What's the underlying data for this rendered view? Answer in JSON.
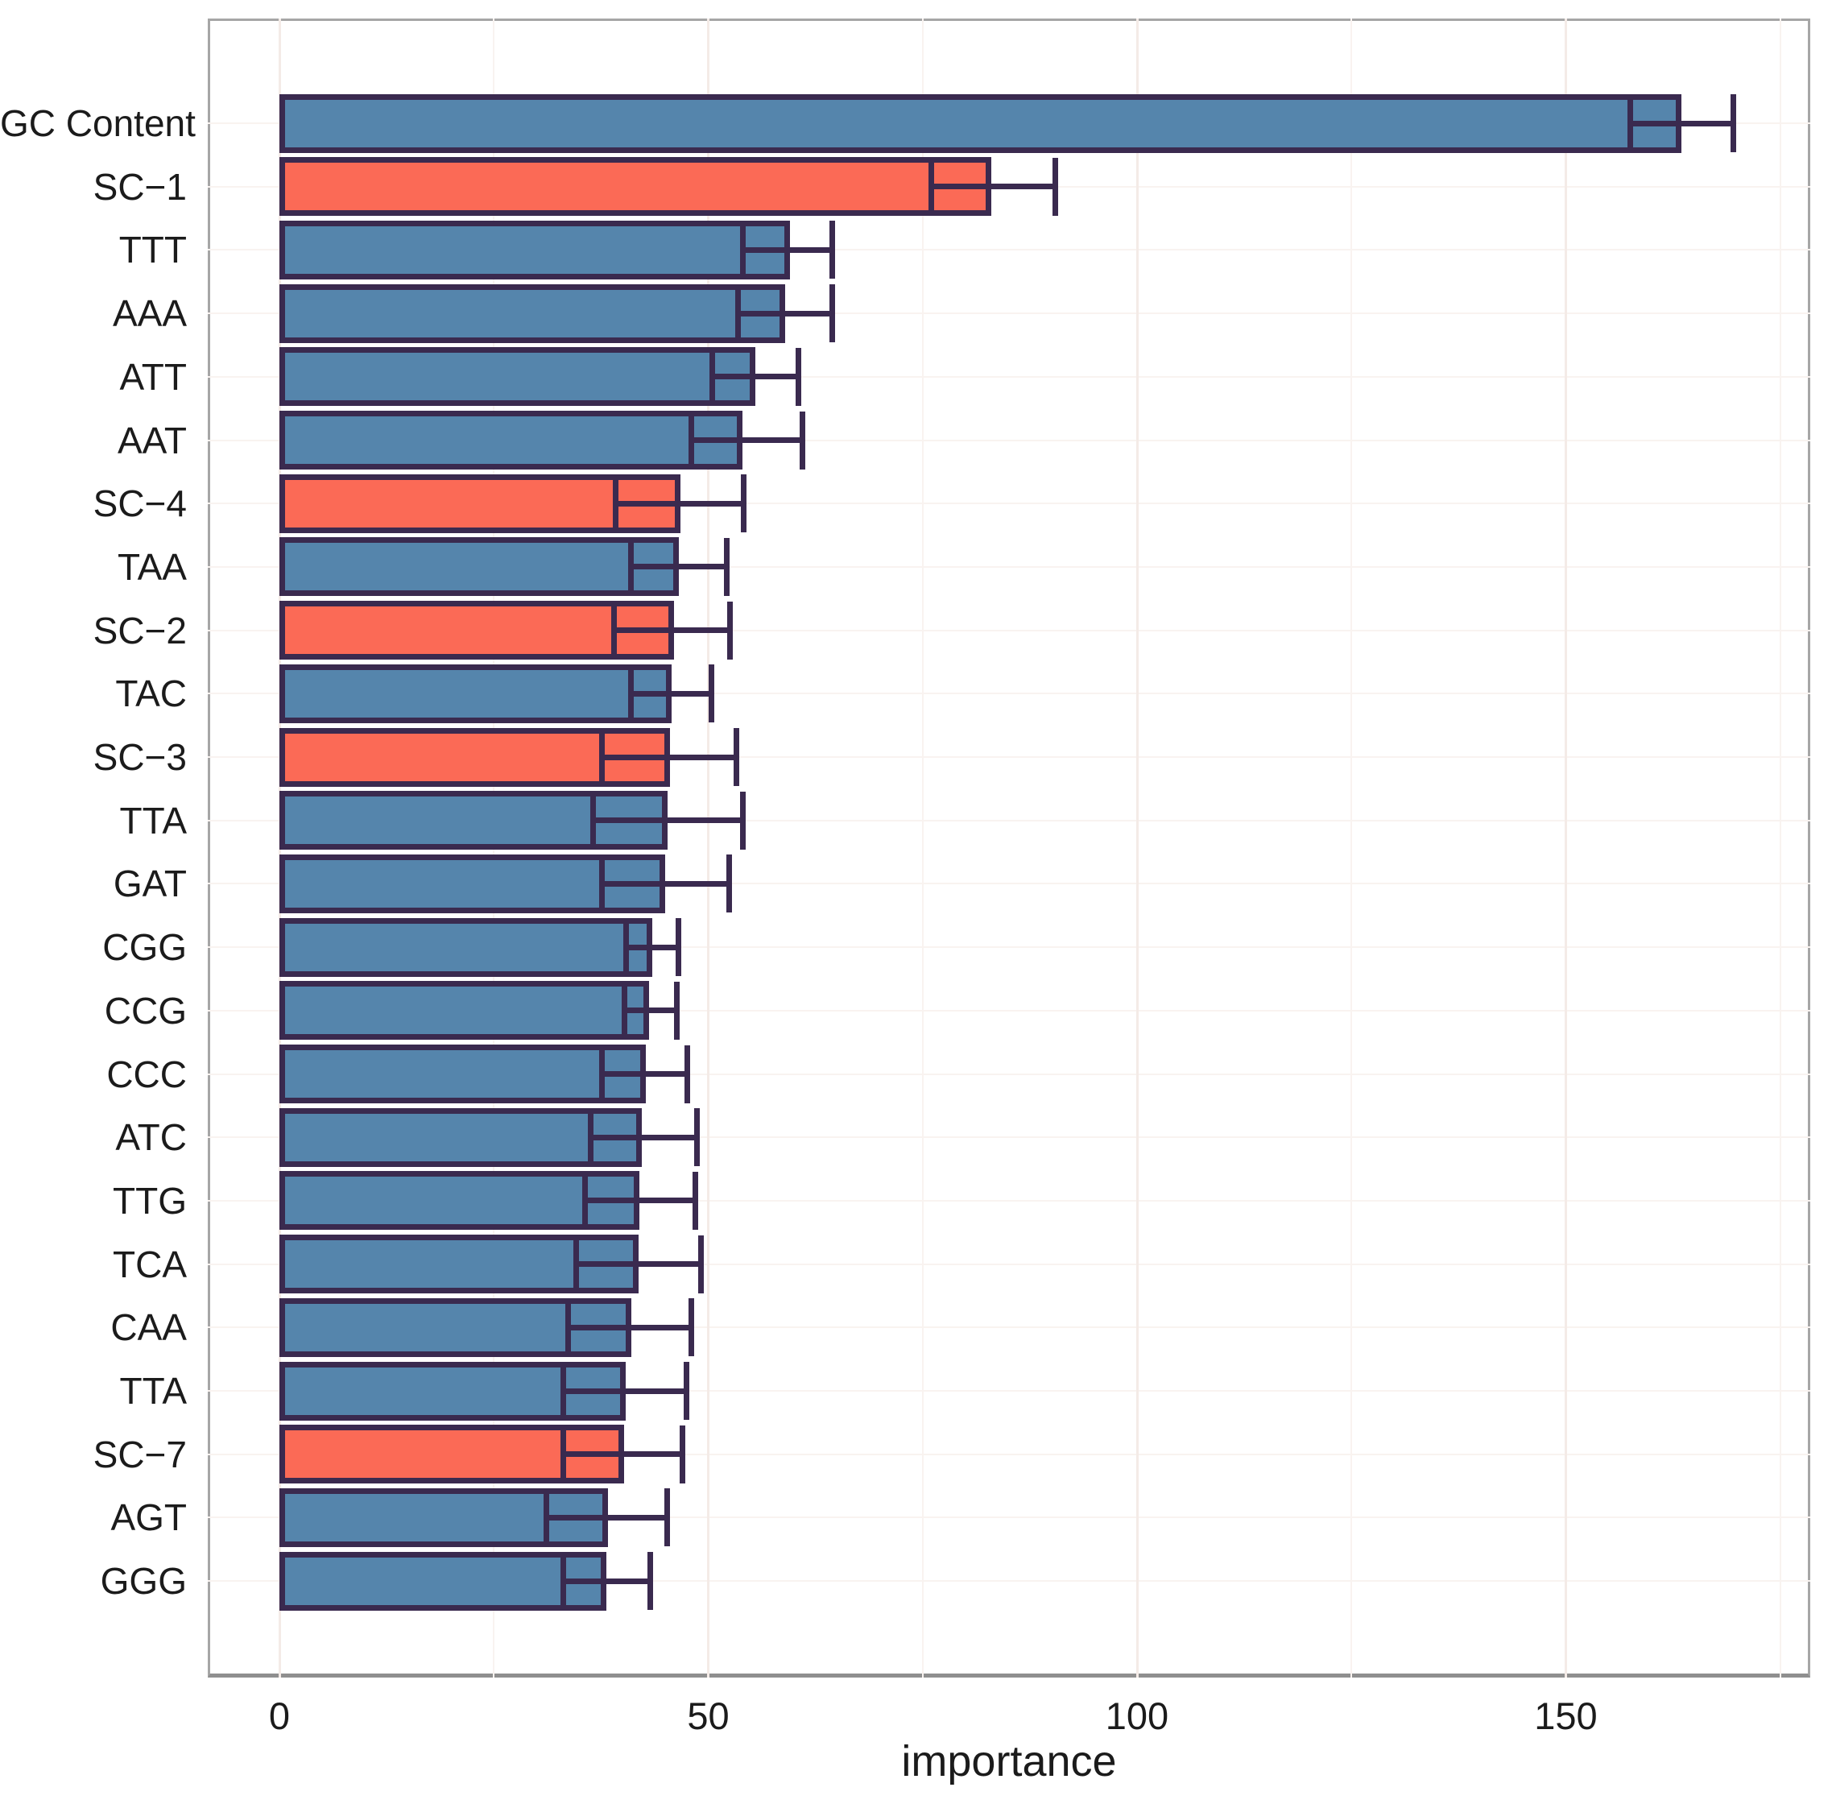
{
  "chart_data": {
    "type": "bar",
    "orientation": "horizontal",
    "title": "",
    "xlabel": "importance",
    "ylabel": "",
    "xlim": [
      0,
      178
    ],
    "x_major_ticks": [
      0,
      50,
      100,
      150
    ],
    "x_major_tick_labels": [
      "0",
      "50",
      "100",
      "150"
    ],
    "x_minor_ticks": [
      25,
      75,
      125,
      175
    ],
    "grid": "very-faint",
    "legend_position": "none",
    "error_bars": "symmetric caps centered on bar end, drawn over bars",
    "colors": {
      "codon_bar": "#5585ac",
      "cluster_bar": "#fb6a56",
      "bar_outline": "#3a2a4f",
      "axis_text": "#1b1b1b",
      "panel_border": "#a6a6a6",
      "axis_line": "#8f8f8f",
      "grid_major": "#f4ebe7",
      "grid_minor": "#f9f3f0"
    },
    "bars": [
      {
        "label": "GC Content",
        "group": "codon",
        "value": 163.5,
        "error_low": 157.5,
        "error_high": 169.5
      },
      {
        "label": "SC−1",
        "group": "cluster",
        "value": 83.0,
        "error_low": 76.0,
        "error_high": 90.5
      },
      {
        "label": "TTT",
        "group": "codon",
        "value": 59.5,
        "error_low": 54.0,
        "error_high": 64.5
      },
      {
        "label": "AAA",
        "group": "codon",
        "value": 59.0,
        "error_low": 53.5,
        "error_high": 64.5
      },
      {
        "label": "ATT",
        "group": "codon",
        "value": 55.5,
        "error_low": 50.5,
        "error_high": 60.5
      },
      {
        "label": "AAT",
        "group": "codon",
        "value": 54.0,
        "error_low": 48.0,
        "error_high": 61.0
      },
      {
        "label": "SC−4",
        "group": "cluster",
        "value": 46.8,
        "error_low": 39.2,
        "error_high": 54.1
      },
      {
        "label": "TAA",
        "group": "codon",
        "value": 46.6,
        "error_low": 41.0,
        "error_high": 52.2
      },
      {
        "label": "SC−2",
        "group": "cluster",
        "value": 46.0,
        "error_low": 39.0,
        "error_high": 52.5
      },
      {
        "label": "TAC",
        "group": "codon",
        "value": 45.7,
        "error_low": 41.0,
        "error_high": 50.4
      },
      {
        "label": "SC−3",
        "group": "cluster",
        "value": 45.5,
        "error_low": 37.6,
        "error_high": 53.3
      },
      {
        "label": "TTA",
        "group": "codon",
        "value": 45.3,
        "error_low": 36.6,
        "error_high": 54.0
      },
      {
        "label": "GAT",
        "group": "codon",
        "value": 45.0,
        "error_low": 37.6,
        "error_high": 52.4
      },
      {
        "label": "CGG",
        "group": "codon",
        "value": 43.5,
        "error_low": 40.4,
        "error_high": 46.5
      },
      {
        "label": "CCG",
        "group": "codon",
        "value": 43.1,
        "error_low": 40.2,
        "error_high": 46.3
      },
      {
        "label": "CCC",
        "group": "codon",
        "value": 42.7,
        "error_low": 37.6,
        "error_high": 47.6
      },
      {
        "label": "ATC",
        "group": "codon",
        "value": 42.3,
        "error_low": 36.3,
        "error_high": 48.7
      },
      {
        "label": "TTG",
        "group": "codon",
        "value": 42.0,
        "error_low": 35.6,
        "error_high": 48.5
      },
      {
        "label": "TCA",
        "group": "codon",
        "value": 41.9,
        "error_low": 34.6,
        "error_high": 49.2
      },
      {
        "label": "CAA",
        "group": "codon",
        "value": 41.0,
        "error_low": 33.7,
        "error_high": 48.0
      },
      {
        "label": "TTA",
        "group": "codon",
        "value": 40.4,
        "error_low": 33.1,
        "error_high": 47.5
      },
      {
        "label": "SC−7",
        "group": "cluster",
        "value": 40.2,
        "error_low": 33.1,
        "error_high": 47.0
      },
      {
        "label": "AGT",
        "group": "codon",
        "value": 38.3,
        "error_low": 31.1,
        "error_high": 45.2
      },
      {
        "label": "GGG",
        "group": "codon",
        "value": 38.1,
        "error_low": 33.1,
        "error_high": 43.2
      }
    ]
  }
}
